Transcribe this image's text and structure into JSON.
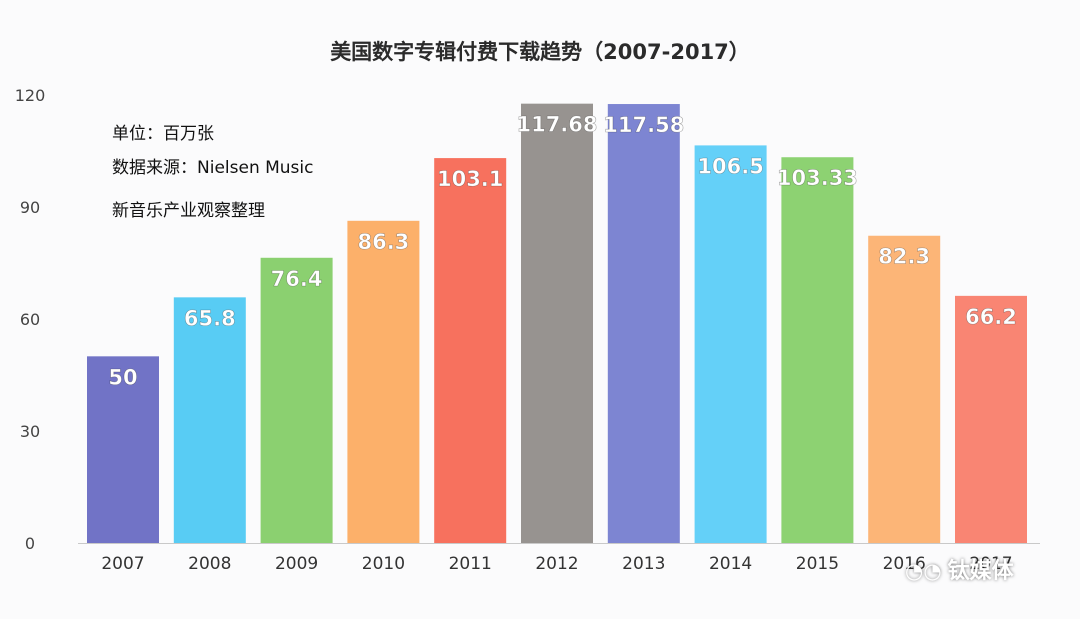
{
  "chart_data": {
    "type": "bar",
    "title": "美国数字专辑付费下载趋势（2007-2017）",
    "categories": [
      "2007",
      "2008",
      "2009",
      "2010",
      "2011",
      "2012",
      "2013",
      "2014",
      "2015",
      "2016",
      "2017"
    ],
    "values": [
      50,
      65.8,
      76.4,
      86.3,
      103.1,
      117.68,
      117.58,
      106.5,
      103.33,
      82.3,
      66.2
    ],
    "value_labels": [
      "50",
      "65.8",
      "76.4",
      "86.3",
      "103.1",
      "117.68",
      "117.58",
      "106.5",
      "103.33",
      "82.3",
      "66.2"
    ],
    "colors": [
      "#7173c6",
      "#58ccf4",
      "#8bd070",
      "#fcb06a",
      "#f7715e",
      "#979390",
      "#7d85d2",
      "#64d0f8",
      "#8dd272",
      "#fcb577",
      "#f98573"
    ],
    "ylim": [
      0,
      120
    ],
    "yticks": [
      0,
      30,
      60,
      90,
      120
    ],
    "grid": false,
    "notes": [
      "单位：百万张",
      "数据来源：Nielsen Music",
      "新音乐产业观察整理"
    ]
  },
  "watermark": {
    "text": "钛媒体",
    "icon": "wechat-icon"
  }
}
